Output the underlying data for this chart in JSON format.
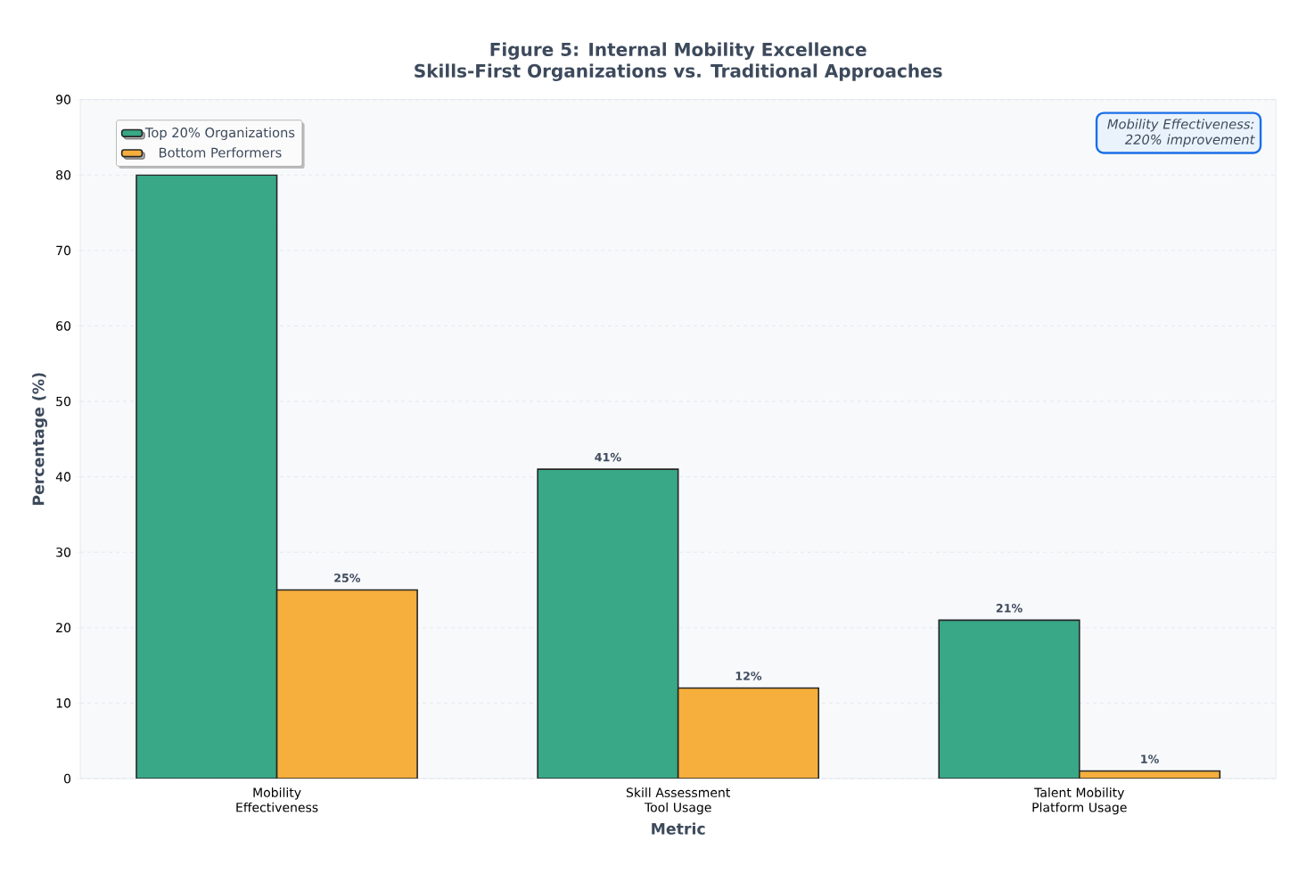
{
  "chart_data": {
    "type": "bar",
    "title": "Figure 5: Internal Mobility Excellence",
    "subtitle": "Skills-First Organizations vs. Traditional Approaches",
    "xlabel": "Metric",
    "ylabel": "Percentage (%)",
    "categories": [
      "Mobility Effectiveness",
      "Skill Assessment Tool Usage",
      "Talent Mobility Platform Usage"
    ],
    "series": [
      {
        "name": "Top 20% Organizations",
        "color": "#38a886",
        "values": [
          80,
          41,
          21
        ],
        "value_labels": [
          null,
          "41%",
          "21%"
        ]
      },
      {
        "name": "Bottom Performers",
        "color": "#f6af3c",
        "values": [
          25,
          12,
          1
        ],
        "value_labels": [
          "25%",
          "12%",
          "1%"
        ]
      }
    ],
    "ylim": [
      0,
      90
    ],
    "yticks": [
      0,
      10,
      20,
      30,
      40,
      50,
      60,
      70,
      80,
      90
    ],
    "grid": "y",
    "legend": "top left",
    "annotations": [
      "Mobility Effectiveness: 220% improvement"
    ]
  }
}
